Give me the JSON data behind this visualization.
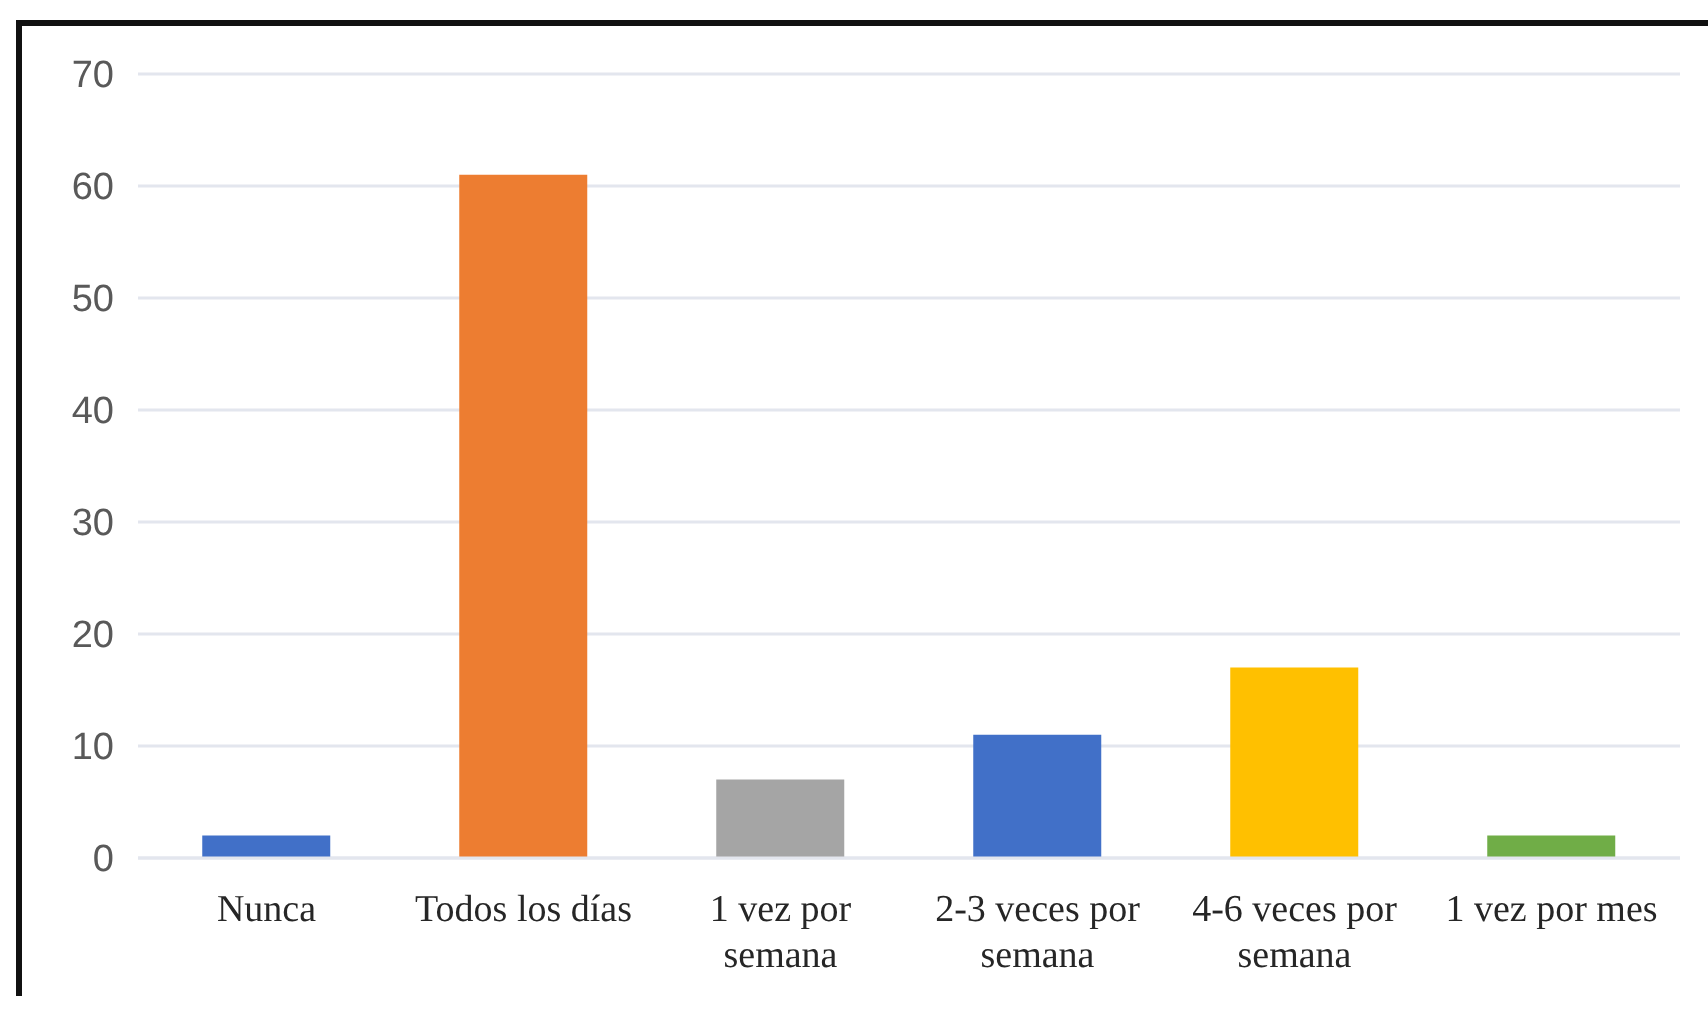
{
  "chart_data": {
    "type": "bar",
    "categories": [
      "Nunca",
      "Todos los días",
      "1 vez por semana",
      "2-3 veces por semana",
      "4-6 veces por semana",
      "1 vez por mes"
    ],
    "values": [
      2,
      61,
      7,
      11,
      17,
      2
    ],
    "colors": [
      "#4170c8",
      "#ed7d31",
      "#a5a5a5",
      "#4170c8",
      "#ffc000",
      "#70ad47"
    ],
    "ylim": [
      0,
      70
    ],
    "yticks": [
      0,
      10,
      20,
      30,
      40,
      50,
      60,
      70
    ],
    "grid": "y"
  }
}
